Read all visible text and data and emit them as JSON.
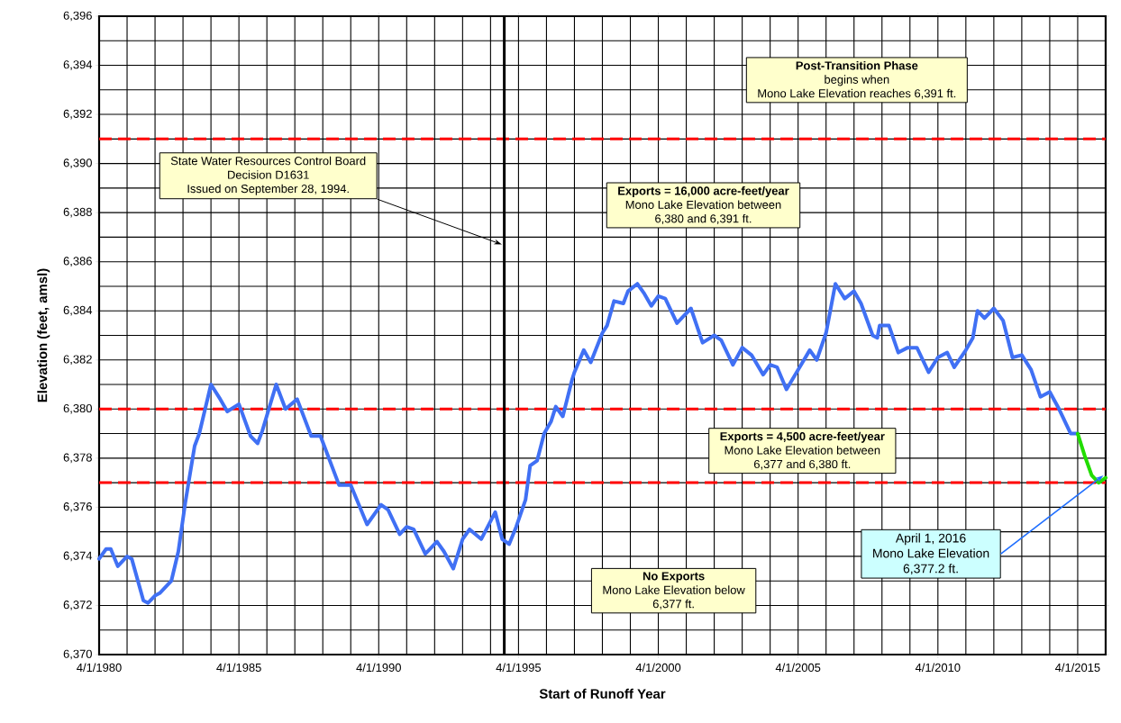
{
  "chart_data": {
    "type": "line",
    "xlabel": "Start of Runoff Year",
    "ylabel": "Elevation (feet, amsl)",
    "xlim": [
      "1980-04-01",
      "2016-04-01"
    ],
    "ylim": [
      6370,
      6396
    ],
    "xticks": [
      {
        "value": "1980-04-01",
        "label": "4/1/1980"
      },
      {
        "value": "1985-04-01",
        "label": "4/1/1985"
      },
      {
        "value": "1990-04-01",
        "label": "4/1/1990"
      },
      {
        "value": "1995-04-01",
        "label": "4/1/1995"
      },
      {
        "value": "2000-04-01",
        "label": "4/1/2000"
      },
      {
        "value": "2005-04-01",
        "label": "4/1/2005"
      },
      {
        "value": "2010-04-01",
        "label": "4/1/2010"
      },
      {
        "value": "2015-04-01",
        "label": "4/1/2015"
      }
    ],
    "yticks": [
      {
        "value": 6370,
        "label": "6,370"
      },
      {
        "value": 6372,
        "label": "6,372"
      },
      {
        "value": 6374,
        "label": "6,374"
      },
      {
        "value": 6376,
        "label": "6,376"
      },
      {
        "value": 6378,
        "label": "6,378"
      },
      {
        "value": 6380,
        "label": "6,380"
      },
      {
        "value": 6382,
        "label": "6,382"
      },
      {
        "value": 6384,
        "label": "6,384"
      },
      {
        "value": 6386,
        "label": "6,386"
      },
      {
        "value": 6388,
        "label": "6,388"
      },
      {
        "value": 6390,
        "label": "6,390"
      },
      {
        "value": 6392,
        "label": "6,392"
      },
      {
        "value": 6394,
        "label": "6,394"
      },
      {
        "value": 6396,
        "label": "6,396"
      }
    ],
    "grid": true,
    "line_style": "solid",
    "series": [
      {
        "color": "#4070f4",
        "x": [
          "1980-04",
          "1980-07",
          "1980-09",
          "1980-12",
          "1981-04",
          "1981-06",
          "1981-11",
          "1982-01",
          "1982-04",
          "1982-06",
          "1982-09",
          "1982-11",
          "1983-02",
          "1983-05",
          "1983-09",
          "1983-11",
          "1984-04",
          "1984-08",
          "1984-11",
          "1985-04",
          "1985-09",
          "1985-12",
          "1986-02",
          "1986-08",
          "1986-12",
          "1987-05",
          "1987-11",
          "1988-03",
          "1988-11",
          "1989-04",
          "1989-11",
          "1990-05",
          "1990-08",
          "1991-01",
          "1991-04",
          "1991-07",
          "1991-12",
          "1992-05",
          "1992-08",
          "1992-12",
          "1993-04",
          "1993-07",
          "1993-12",
          "1994-06",
          "1994-09",
          "1994-12",
          "1995-03",
          "1995-07",
          "1995-09",
          "1995-12",
          "1996-03",
          "1996-06",
          "1996-08",
          "1996-11",
          "1997-03",
          "1997-04",
          "1997-08",
          "1997-11",
          "1998-04",
          "1998-06",
          "1998-09",
          "1999-01",
          "1999-03",
          "1999-07",
          "1999-10",
          "2000-01",
          "2000-04",
          "2000-07",
          "2000-12",
          "2001-06",
          "2001-11",
          "2002-04",
          "2002-07",
          "2002-12",
          "2003-04",
          "2003-08",
          "2004-01",
          "2004-04",
          "2004-07",
          "2004-11",
          "2005-04",
          "2005-09",
          "2005-12",
          "2006-04",
          "2006-08",
          "2006-12",
          "2007-04",
          "2007-07",
          "2007-12",
          "2008-02",
          "2008-03",
          "2008-07",
          "2008-11",
          "2009-03",
          "2009-07",
          "2009-12",
          "2010-04",
          "2010-08",
          "2010-11",
          "2011-04",
          "2011-07",
          "2011-09",
          "2011-12",
          "2012-04",
          "2012-08",
          "2012-12",
          "2013-04",
          "2013-08",
          "2013-12",
          "2014-04",
          "2014-08",
          "2015-01",
          "2015-04"
        ],
        "values": [
          6373.9,
          6374.3,
          6374.3,
          6373.6,
          6374.0,
          6373.9,
          6372.2,
          6372.1,
          6372.4,
          6372.5,
          6372.8,
          6373.0,
          6374.2,
          6376.2,
          6378.5,
          6379.0,
          6381.0,
          6380.4,
          6379.9,
          6380.2,
          6378.9,
          6378.6,
          6379.1,
          6381.0,
          6380.0,
          6380.4,
          6378.9,
          6378.9,
          6376.9,
          6376.9,
          6375.3,
          6376.1,
          6375.9,
          6374.9,
          6375.2,
          6375.1,
          6374.1,
          6374.6,
          6374.2,
          6373.5,
          6374.7,
          6375.1,
          6374.7,
          6375.8,
          6374.7,
          6374.5,
          6375.2,
          6376.3,
          6377.7,
          6377.9,
          6379.0,
          6379.5,
          6380.1,
          6379.7,
          6381.2,
          6381.5,
          6382.4,
          6381.9,
          6383.1,
          6383.4,
          6384.4,
          6384.3,
          6384.8,
          6385.1,
          6384.7,
          6384.2,
          6384.6,
          6384.5,
          6383.5,
          6384.1,
          6382.7,
          6383.0,
          6382.8,
          6381.8,
          6382.5,
          6382.2,
          6381.4,
          6381.8,
          6381.7,
          6380.8,
          6381.6,
          6382.4,
          6382.0,
          6383.1,
          6385.1,
          6384.5,
          6384.8,
          6384.3,
          6383.0,
          6382.9,
          6383.4,
          6383.4,
          6382.3,
          6382.5,
          6382.5,
          6381.5,
          6382.1,
          6382.3,
          6381.7,
          6382.4,
          6382.9,
          6384.0,
          6383.7,
          6384.1,
          6383.6,
          6382.1,
          6382.2,
          6381.6,
          6380.5,
          6380.7,
          6380.0,
          6379.0,
          6379.0
        ]
      },
      {
        "color": "#22dd00",
        "x": [
          "2015-04",
          "2015-07",
          "2015-10",
          "2016-01",
          "2016-04"
        ],
        "values": [
          6379.0,
          6378.1,
          6377.3,
          6377.0,
          6377.2
        ]
      }
    ],
    "ref_lines": [
      {
        "axis": "y",
        "value": 6391,
        "color": "#ff0000",
        "line_style": "dashed"
      },
      {
        "axis": "y",
        "value": 6380,
        "color": "#ff0000",
        "line_style": "dashed"
      },
      {
        "axis": "y",
        "value": 6377,
        "color": "#ff0000",
        "line_style": "dashed"
      },
      {
        "axis": "x",
        "value": "1994-09-28",
        "color": "#000000",
        "line_style": "solid"
      }
    ],
    "annotations": [
      "State Water Resources Control Board",
      "Decision D1631",
      "Issued on September 28, 1994.",
      "Post-Transition Phase",
      "begins when",
      "Mono Lake Elevation reaches 6,391 ft.",
      "Exports = 16,000 acre-feet/year",
      "Mono Lake Elevation between",
      "6,380 and 6,391 ft.",
      "Exports = 4,500 acre-feet/year",
      "Mono Lake Elevation between",
      "6,377 and 6,380 ft.",
      "No Exports",
      "Mono Lake Elevation below",
      "6,377 ft.",
      "April 1, 2016",
      {
        "text": "Mono Lake Elevation",
        "x": "2016-04-01",
        "y": 6377.2
      },
      "6,377.2 ft."
    ]
  }
}
